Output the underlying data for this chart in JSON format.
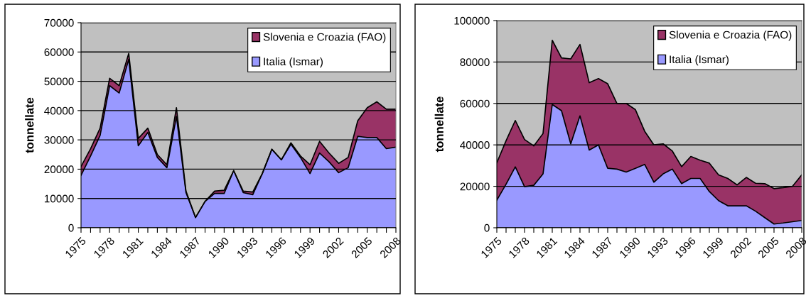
{
  "chart_data": [
    {
      "type": "area",
      "stacked": true,
      "ylabel": "tonnellate",
      "categories": [
        "1975",
        null,
        null,
        "1978",
        null,
        null,
        "1981",
        null,
        null,
        "1984",
        null,
        null,
        "1987",
        null,
        null,
        "1990",
        null,
        null,
        "1993",
        null,
        null,
        "1996",
        null,
        null,
        "1999",
        null,
        null,
        "2002",
        null,
        null,
        "2005",
        null,
        null,
        "2008"
      ],
      "series": [
        {
          "name": "Italia (Ismar)",
          "color": "#9999ff",
          "values": [
            17900,
            24500,
            31500,
            48500,
            46000,
            57500,
            28000,
            32500,
            24000,
            20500,
            38000,
            12000,
            3500,
            9000,
            11700,
            11700,
            19500,
            12000,
            11300,
            18500,
            26800,
            23200,
            28500,
            24000,
            18500,
            25500,
            22500,
            18800,
            20500,
            31200,
            30800,
            30800,
            27000,
            27500
          ]
        },
        {
          "name": "Slovenia e Croazia (FAO)",
          "color": "#993366",
          "values": [
            3000,
            2500,
            2500,
            2500,
            2500,
            2000,
            2500,
            1500,
            1000,
            1000,
            3000,
            500,
            0,
            0,
            800,
            1100,
            0,
            500,
            900,
            0,
            0,
            0,
            500,
            500,
            3000,
            4000,
            3000,
            3200,
            3500,
            5300,
            10200,
            12200,
            13500,
            13000
          ]
        }
      ],
      "ylim": [
        0,
        70000
      ],
      "yticks": [
        0,
        10000,
        20000,
        30000,
        40000,
        50000,
        60000,
        70000
      ],
      "grid": "y",
      "legend": "top right"
    },
    {
      "type": "area",
      "stacked": true,
      "ylabel": "tonnellate",
      "categories": [
        "1975",
        null,
        null,
        "1978",
        null,
        null,
        "1981",
        null,
        null,
        "1984",
        null,
        null,
        "1987",
        null,
        null,
        "1990",
        null,
        null,
        "1993",
        null,
        null,
        "1996",
        null,
        null,
        "1999",
        null,
        null,
        "2002",
        null,
        null,
        "2005",
        null,
        null,
        "2008"
      ],
      "series": [
        {
          "name": "Italia (Ismar)",
          "color": "#9999ff",
          "values": [
            13300,
            21000,
            29400,
            19800,
            20500,
            26000,
            59500,
            56500,
            40500,
            54000,
            37500,
            40000,
            28700,
            28300,
            26900,
            28700,
            30600,
            22000,
            26000,
            28300,
            21300,
            23800,
            23800,
            17500,
            13100,
            10600,
            10600,
            10600,
            8000,
            4900,
            1800,
            2300,
            2900,
            3500
          ]
        },
        {
          "name": "Slovenia e Croazia (FAO)",
          "color": "#993366",
          "values": [
            18100,
            21000,
            22400,
            22800,
            19000,
            19500,
            31000,
            25500,
            41000,
            34500,
            32500,
            32000,
            40800,
            31700,
            33100,
            28300,
            16000,
            18000,
            14500,
            8700,
            8200,
            10600,
            8800,
            13700,
            12400,
            13200,
            10100,
            13700,
            13500,
            16400,
            17100,
            17100,
            17100,
            22000
          ]
        }
      ],
      "ylim": [
        0,
        100000
      ],
      "yticks": [
        0,
        20000,
        40000,
        60000,
        80000,
        100000
      ],
      "grid": "y",
      "legend": "top right"
    }
  ]
}
